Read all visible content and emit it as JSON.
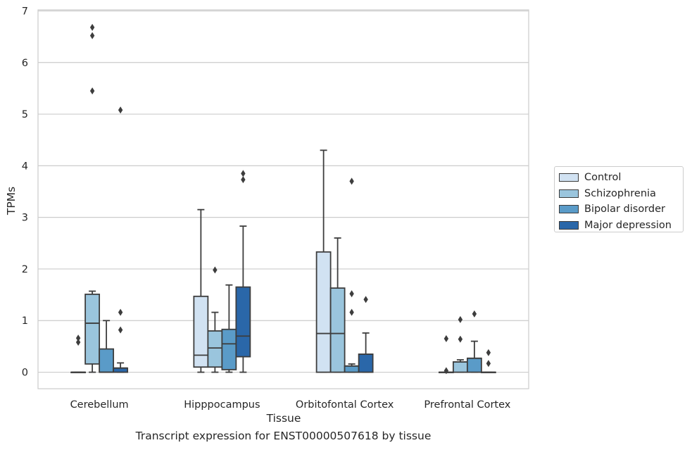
{
  "chart_data": {
    "type": "box",
    "xlabel": "Tissue",
    "ylabel": "TPMs",
    "ylim": [
      -0.32,
      7.02
    ],
    "yticks": [
      0,
      1,
      2,
      3,
      4,
      5,
      6,
      7
    ],
    "grid": "horizontal",
    "legend_position": "right",
    "categories": [
      "Cerebellum",
      "Hipppocampus",
      "Orbitofontal Cortex",
      "Prefrontal Cortex"
    ],
    "series": [
      {
        "name": "Control",
        "color": "#d1e2f2",
        "boxes": [
          {
            "whislo": 0,
            "q1": 0,
            "med": 0,
            "q3": 0,
            "whishi": 0,
            "fliers": [
              0.58,
              0.66
            ]
          },
          {
            "whislo": 0,
            "q1": 0.1,
            "med": 0.33,
            "q3": 1.47,
            "whishi": 3.15,
            "fliers": []
          },
          {
            "whislo": 0,
            "q1": 0,
            "med": 0.75,
            "q3": 2.33,
            "whishi": 4.3,
            "fliers": []
          },
          {
            "whislo": 0,
            "q1": 0,
            "med": 0,
            "q3": 0,
            "whishi": 0,
            "fliers": [
              0.03,
              0.65
            ]
          }
        ]
      },
      {
        "name": "Schizophrenia",
        "color": "#9ac5dd",
        "boxes": [
          {
            "whislo": 0,
            "q1": 0.16,
            "med": 0.95,
            "q3": 1.51,
            "whishi": 1.57,
            "fliers": [
              5.45,
              6.52,
              6.68
            ]
          },
          {
            "whislo": 0,
            "q1": 0.1,
            "med": 0.47,
            "q3": 0.8,
            "whishi": 1.16,
            "fliers": [
              1.98
            ]
          },
          {
            "whislo": 0,
            "q1": 0,
            "med": 0.75,
            "q3": 1.63,
            "whishi": 2.6,
            "fliers": []
          },
          {
            "whislo": 0,
            "q1": 0,
            "med": 0.2,
            "q3": 0.2,
            "whishi": 0.24,
            "fliers": [
              0.64,
              1.02
            ]
          }
        ]
      },
      {
        "name": "Bipolar disorder",
        "color": "#5a9bc8",
        "boxes": [
          {
            "whislo": 0,
            "q1": 0,
            "med": 0,
            "q3": 0.45,
            "whishi": 1.0,
            "fliers": []
          },
          {
            "whislo": 0,
            "q1": 0.05,
            "med": 0.55,
            "q3": 0.83,
            "whishi": 1.69,
            "fliers": []
          },
          {
            "whislo": 0,
            "q1": 0,
            "med": 0.12,
            "q3": 0.12,
            "whishi": 0.16,
            "fliers": [
              1.16,
              1.52,
              3.7
            ]
          },
          {
            "whislo": 0,
            "q1": 0,
            "med": 0.27,
            "q3": 0.27,
            "whishi": 0.6,
            "fliers": [
              1.13
            ]
          }
        ]
      },
      {
        "name": "Major depression",
        "color": "#2a67a9",
        "boxes": [
          {
            "whislo": 0,
            "q1": 0,
            "med": 0.08,
            "q3": 0.08,
            "whishi": 0.18,
            "fliers": [
              0.82,
              1.16,
              5.08
            ]
          },
          {
            "whislo": 0,
            "q1": 0.3,
            "med": 0.7,
            "q3": 1.65,
            "whishi": 2.83,
            "fliers": [
              3.73,
              3.85
            ]
          },
          {
            "whislo": 0,
            "q1": 0,
            "med": 0.35,
            "q3": 0.35,
            "whishi": 0.76,
            "fliers": [
              1.41
            ]
          },
          {
            "whislo": 0,
            "q1": 0,
            "med": 0,
            "q3": 0,
            "whishi": 0,
            "fliers": [
              0.17,
              0.38
            ]
          }
        ]
      }
    ],
    "caption": "Transcript expression for ENST00000507618 by tissue"
  }
}
